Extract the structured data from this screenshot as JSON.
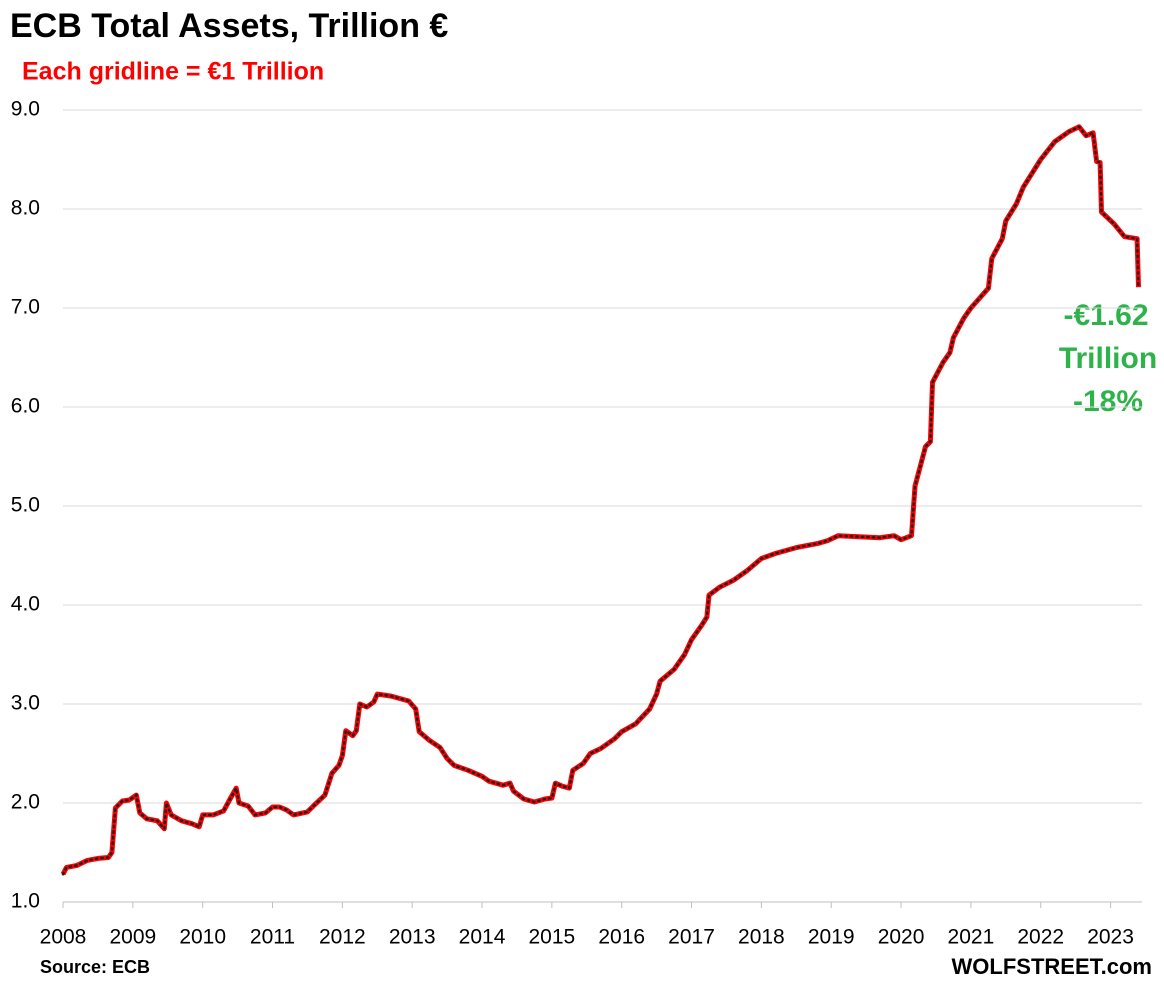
{
  "chart_data": {
    "type": "line",
    "title": "ECB Total Assets, Trillion €",
    "subtitle": "Each gridline = €1 Trillion",
    "annotation": [
      "-€1.62",
      "Trillion",
      "-18%"
    ],
    "source": "Source: ECB",
    "credit": "WOLFSTREET.com",
    "xlim": [
      2008,
      2023.45
    ],
    "xticks": [
      2008,
      2009,
      2010,
      2011,
      2012,
      2013,
      2014,
      2015,
      2016,
      2017,
      2018,
      2019,
      2020,
      2021,
      2022,
      2023
    ],
    "ylim": [
      1,
      9
    ],
    "yticks": [
      {
        "value": 1,
        "label": "1.0"
      },
      {
        "value": 2,
        "label": "2.0"
      },
      {
        "value": 3,
        "label": "3.0"
      },
      {
        "value": 4,
        "label": "4.0"
      },
      {
        "value": 5,
        "label": "5.0"
      },
      {
        "value": 6,
        "label": "6.0"
      },
      {
        "value": 7,
        "label": "7.0"
      },
      {
        "value": 8,
        "label": "8.0"
      },
      {
        "value": 9,
        "label": "9.0"
      }
    ],
    "grid": true,
    "series": [
      {
        "color": "#ff0000",
        "x": [
          2008.0,
          2008.05,
          2008.2,
          2008.35,
          2008.5,
          2008.65,
          2008.7,
          2008.75,
          2008.85,
          2008.95,
          2009.05,
          2009.1,
          2009.2,
          2009.35,
          2009.45,
          2009.48,
          2009.55,
          2009.7,
          2009.85,
          2009.95,
          2010.0,
          2010.15,
          2010.3,
          2010.4,
          2010.48,
          2010.52,
          2010.65,
          2010.75,
          2010.9,
          2011.0,
          2011.1,
          2011.2,
          2011.3,
          2011.5,
          2011.6,
          2011.75,
          2011.85,
          2011.95,
          2012.0,
          2012.05,
          2012.15,
          2012.2,
          2012.25,
          2012.35,
          2012.45,
          2012.5,
          2012.7,
          2012.95,
          2013.05,
          2013.1,
          2013.25,
          2013.4,
          2013.5,
          2013.6,
          2013.8,
          2014.0,
          2014.1,
          2014.3,
          2014.4,
          2014.45,
          2014.6,
          2014.75,
          2014.9,
          2015.0,
          2015.05,
          2015.15,
          2015.25,
          2015.3,
          2015.45,
          2015.55,
          2015.7,
          2015.9,
          2016.0,
          2016.2,
          2016.4,
          2016.5,
          2016.55,
          2016.75,
          2016.9,
          2017.0,
          2017.15,
          2017.22,
          2017.25,
          2017.4,
          2017.6,
          2017.8,
          2018.0,
          2018.2,
          2018.5,
          2018.8,
          2018.95,
          2019.1,
          2019.4,
          2019.7,
          2019.9,
          2020.0,
          2020.15,
          2020.2,
          2020.35,
          2020.42,
          2020.45,
          2020.6,
          2020.7,
          2020.75,
          2020.9,
          2021.0,
          2021.15,
          2021.25,
          2021.3,
          2021.45,
          2021.5,
          2021.65,
          2021.75,
          2022.0,
          2022.2,
          2022.4,
          2022.55,
          2022.65,
          2022.75,
          2022.8,
          2022.85,
          2022.87,
          2023.05,
          2023.2,
          2023.38,
          2023.4
        ],
        "values": [
          1.28,
          1.35,
          1.37,
          1.42,
          1.44,
          1.45,
          1.5,
          1.95,
          2.02,
          2.03,
          2.08,
          1.9,
          1.84,
          1.82,
          1.74,
          2.0,
          1.88,
          1.82,
          1.79,
          1.76,
          1.88,
          1.88,
          1.92,
          2.05,
          2.15,
          2.0,
          1.97,
          1.88,
          1.9,
          1.96,
          1.96,
          1.93,
          1.88,
          1.91,
          1.98,
          2.08,
          2.3,
          2.38,
          2.48,
          2.73,
          2.68,
          2.73,
          3.0,
          2.97,
          3.02,
          3.1,
          3.08,
          3.03,
          2.95,
          2.72,
          2.63,
          2.56,
          2.45,
          2.38,
          2.33,
          2.27,
          2.22,
          2.18,
          2.2,
          2.12,
          2.04,
          2.01,
          2.04,
          2.05,
          2.2,
          2.17,
          2.15,
          2.33,
          2.4,
          2.5,
          2.55,
          2.65,
          2.72,
          2.8,
          2.95,
          3.1,
          3.23,
          3.35,
          3.5,
          3.65,
          3.8,
          3.88,
          4.1,
          4.18,
          4.25,
          4.35,
          4.47,
          4.52,
          4.58,
          4.62,
          4.65,
          4.7,
          4.69,
          4.68,
          4.7,
          4.66,
          4.7,
          5.2,
          5.6,
          5.65,
          6.25,
          6.45,
          6.55,
          6.7,
          6.9,
          7.0,
          7.12,
          7.2,
          7.5,
          7.7,
          7.88,
          8.05,
          8.22,
          8.5,
          8.68,
          8.78,
          8.83,
          8.74,
          8.77,
          8.48,
          8.47,
          7.97,
          7.85,
          7.72,
          7.7,
          7.21
        ]
      }
    ]
  }
}
